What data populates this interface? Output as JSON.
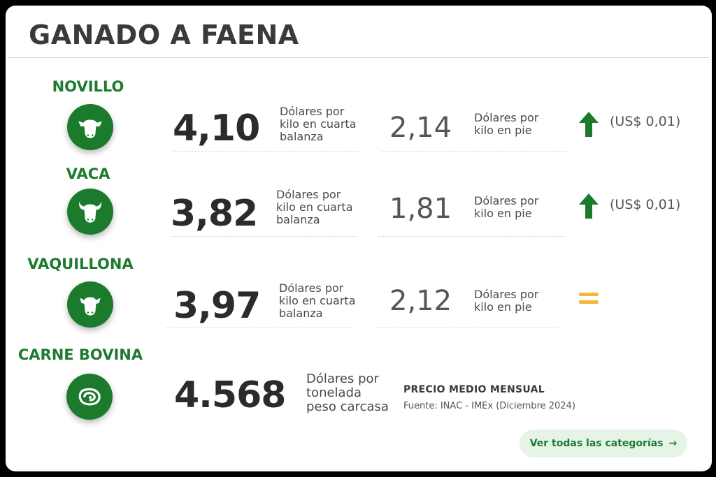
{
  "title": "GANADO A FAENA",
  "categories": [
    {
      "label": "NOVILLO",
      "price": "4,10",
      "price_desc": [
        "Dólares por",
        "kilo en cuarta",
        "balanza"
      ],
      "pie_price": "2,14",
      "pie_desc": [
        "Dólares por",
        "kilo en pie"
      ],
      "trend": "up",
      "change": "(US$ 0,01)"
    },
    {
      "label": "VACA",
      "price": "3,82",
      "price_desc": [
        "Dólares por",
        "kilo en cuarta",
        "balanza"
      ],
      "pie_price": "1,81",
      "pie_desc": [
        "Dólares por",
        "kilo en pie"
      ],
      "trend": "up",
      "change": "(US$ 0,01)"
    },
    {
      "label": "VAQUILLONA",
      "price": "3,97",
      "price_desc": [
        "Dólares por",
        "kilo en cuarta",
        "balanza"
      ],
      "pie_price": "2,12",
      "pie_desc": [
        "Dólares por",
        "kilo en pie"
      ],
      "trend": "equal",
      "change": ""
    }
  ],
  "carne": {
    "label": "CARNE BOVINA",
    "price": "4.568",
    "desc": [
      "Dólares por",
      "tonelada",
      "peso carcasa"
    ],
    "note_title": "PRECIO MEDIO MENSUAL",
    "source": "Fuente: INAC - IMEx (Diciembre 2024)"
  },
  "button": {
    "label": "Ver todas las categorías",
    "arrow": "→"
  },
  "colors": {
    "brand_green": "#1b7a2c",
    "equal_yellow": "#f3b93a"
  },
  "icons": {
    "novillo": "cow-head-icon",
    "vaca": "cow-horns-icon",
    "vaquillona": "heifer-head-icon",
    "carne": "meat-cut-icon",
    "up": "arrow-up-icon",
    "equal": "equals-icon"
  }
}
